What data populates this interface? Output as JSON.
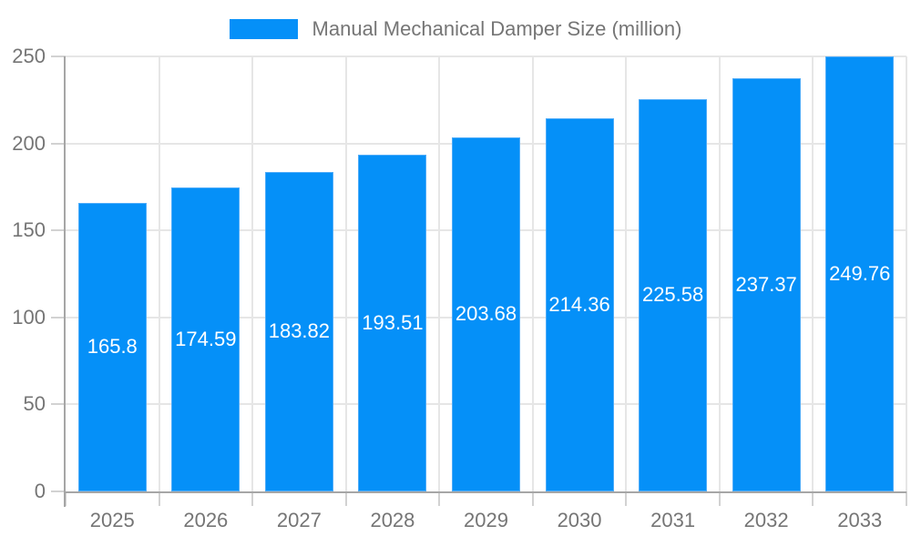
{
  "legend": {
    "label": "Manual Mechanical Damper Size (million)"
  },
  "chart_data": {
    "type": "bar",
    "title": "Manual Mechanical Damper Size (million)",
    "categories": [
      "2025",
      "2026",
      "2027",
      "2028",
      "2029",
      "2030",
      "2031",
      "2032",
      "2033"
    ],
    "values": [
      165.8,
      174.59,
      183.82,
      193.51,
      203.68,
      214.36,
      225.58,
      237.37,
      249.76
    ],
    "value_labels": [
      "165.8",
      "174.59",
      "183.82",
      "193.51",
      "203.68",
      "214.36",
      "225.58",
      "237.37",
      "249.76"
    ],
    "xlabel": "",
    "ylabel": "",
    "ylim": [
      0,
      250
    ],
    "yticks": [
      0,
      50,
      100,
      150,
      200,
      250
    ],
    "grid": true,
    "legend_position": "top",
    "colors": {
      "bar": "#0590f8",
      "bar_edge": "#4facf9",
      "value_label": "#ffffff",
      "axis_text": "#757575",
      "gridline": "#e6e6e6",
      "axis_line": "#a6a6a6",
      "tick": "#d2d2d2"
    }
  }
}
